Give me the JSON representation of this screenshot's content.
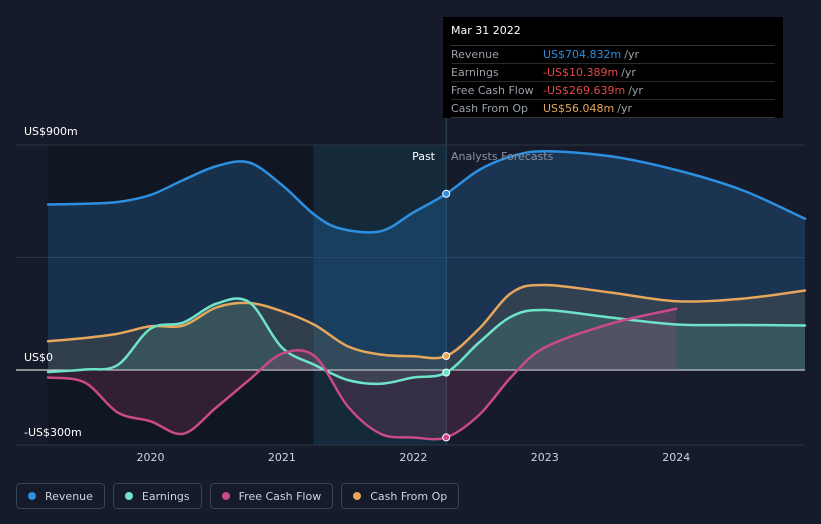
{
  "chart_data": {
    "type": "line",
    "ylabels": [
      "US$900m",
      "US$0",
      "-US$300m"
    ],
    "ylim": [
      -300,
      900
    ],
    "xlim": [
      2019.22,
      2024.98
    ],
    "xticks": [
      2020,
      2021,
      2022,
      2023,
      2024
    ],
    "past_label": "Past",
    "forecast_label": "Analysts Forecasts",
    "divider_x": 2022.25,
    "series": [
      {
        "name": "Revenue",
        "color": "#2d8fe0",
        "points": [
          [
            2019.22,
            662
          ],
          [
            2019.5,
            665
          ],
          [
            2019.75,
            672
          ],
          [
            2020,
            700
          ],
          [
            2020.25,
            760
          ],
          [
            2020.5,
            815
          ],
          [
            2020.75,
            830
          ],
          [
            2021,
            740
          ],
          [
            2021.25,
            620
          ],
          [
            2021.45,
            565
          ],
          [
            2021.75,
            555
          ],
          [
            2022,
            630
          ],
          [
            2022.25,
            704.8
          ],
          [
            2022.5,
            800
          ],
          [
            2022.75,
            855
          ],
          [
            2023,
            875
          ],
          [
            2023.5,
            855
          ],
          [
            2024,
            800
          ],
          [
            2024.5,
            720
          ],
          [
            2024.98,
            605
          ]
        ],
        "marker": [
          2022.25,
          704.8
        ]
      },
      {
        "name": "Earnings",
        "color": "#6fe3c9",
        "points": [
          [
            2019.22,
            -8
          ],
          [
            2019.5,
            2
          ],
          [
            2019.75,
            20
          ],
          [
            2020,
            165
          ],
          [
            2020.25,
            190
          ],
          [
            2020.5,
            265
          ],
          [
            2020.75,
            272
          ],
          [
            2021,
            90
          ],
          [
            2021.25,
            20
          ],
          [
            2021.5,
            -40
          ],
          [
            2021.75,
            -55
          ],
          [
            2022,
            -30
          ],
          [
            2022.25,
            -10.4
          ],
          [
            2022.5,
            110
          ],
          [
            2022.75,
            215
          ],
          [
            2023,
            240
          ],
          [
            2023.5,
            210
          ],
          [
            2024,
            182
          ],
          [
            2024.5,
            180
          ],
          [
            2024.98,
            178
          ]
        ],
        "marker": [
          2022.25,
          -10.4
        ]
      },
      {
        "name": "Free Cash Flow",
        "color": "#c84a87",
        "points": [
          [
            2019.22,
            -30
          ],
          [
            2019.5,
            -50
          ],
          [
            2019.75,
            -170
          ],
          [
            2020,
            -205
          ],
          [
            2020.25,
            -255
          ],
          [
            2020.5,
            -150
          ],
          [
            2020.75,
            -40
          ],
          [
            2021,
            65
          ],
          [
            2021.25,
            55
          ],
          [
            2021.5,
            -145
          ],
          [
            2021.75,
            -255
          ],
          [
            2022,
            -270
          ],
          [
            2022.25,
            -269.6
          ],
          [
            2022.5,
            -180
          ],
          [
            2022.75,
            -25
          ],
          [
            2023,
            90
          ],
          [
            2023.5,
            185
          ],
          [
            2024,
            245
          ]
        ],
        "marker": [
          2022.25,
          -269.6
        ]
      },
      {
        "name": "Cash From Op",
        "color": "#e6a65c",
        "points": [
          [
            2019.22,
            115
          ],
          [
            2019.5,
            128
          ],
          [
            2019.75,
            145
          ],
          [
            2020,
            175
          ],
          [
            2020.25,
            178
          ],
          [
            2020.5,
            250
          ],
          [
            2020.75,
            268
          ],
          [
            2021,
            235
          ],
          [
            2021.25,
            180
          ],
          [
            2021.5,
            95
          ],
          [
            2021.75,
            62
          ],
          [
            2022,
            55
          ],
          [
            2022.25,
            56
          ],
          [
            2022.5,
            165
          ],
          [
            2022.75,
            310
          ],
          [
            2023,
            340
          ],
          [
            2023.5,
            310
          ],
          [
            2024,
            275
          ],
          [
            2024.5,
            285
          ],
          [
            2024.98,
            318
          ]
        ],
        "marker": [
          2022.25,
          56
        ]
      }
    ]
  },
  "tooltip": {
    "date": "Mar 31 2022",
    "rows": [
      {
        "label": "Revenue",
        "value": "US$704.832m",
        "unit": "/yr",
        "color": "#2d8fe0"
      },
      {
        "label": "Earnings",
        "value": "-US$10.389m",
        "unit": "/yr",
        "color": "#e54848"
      },
      {
        "label": "Free Cash Flow",
        "value": "-US$269.639m",
        "unit": "/yr",
        "color": "#e54848"
      },
      {
        "label": "Cash From Op",
        "value": "US$56.048m",
        "unit": "/yr",
        "color": "#e6a65c"
      }
    ]
  },
  "legend": [
    {
      "label": "Revenue",
      "color": "#2d8fe0"
    },
    {
      "label": "Earnings",
      "color": "#6fe3c9"
    },
    {
      "label": "Free Cash Flow",
      "color": "#c84a87"
    },
    {
      "label": "Cash From Op",
      "color": "#e6a65c"
    }
  ]
}
